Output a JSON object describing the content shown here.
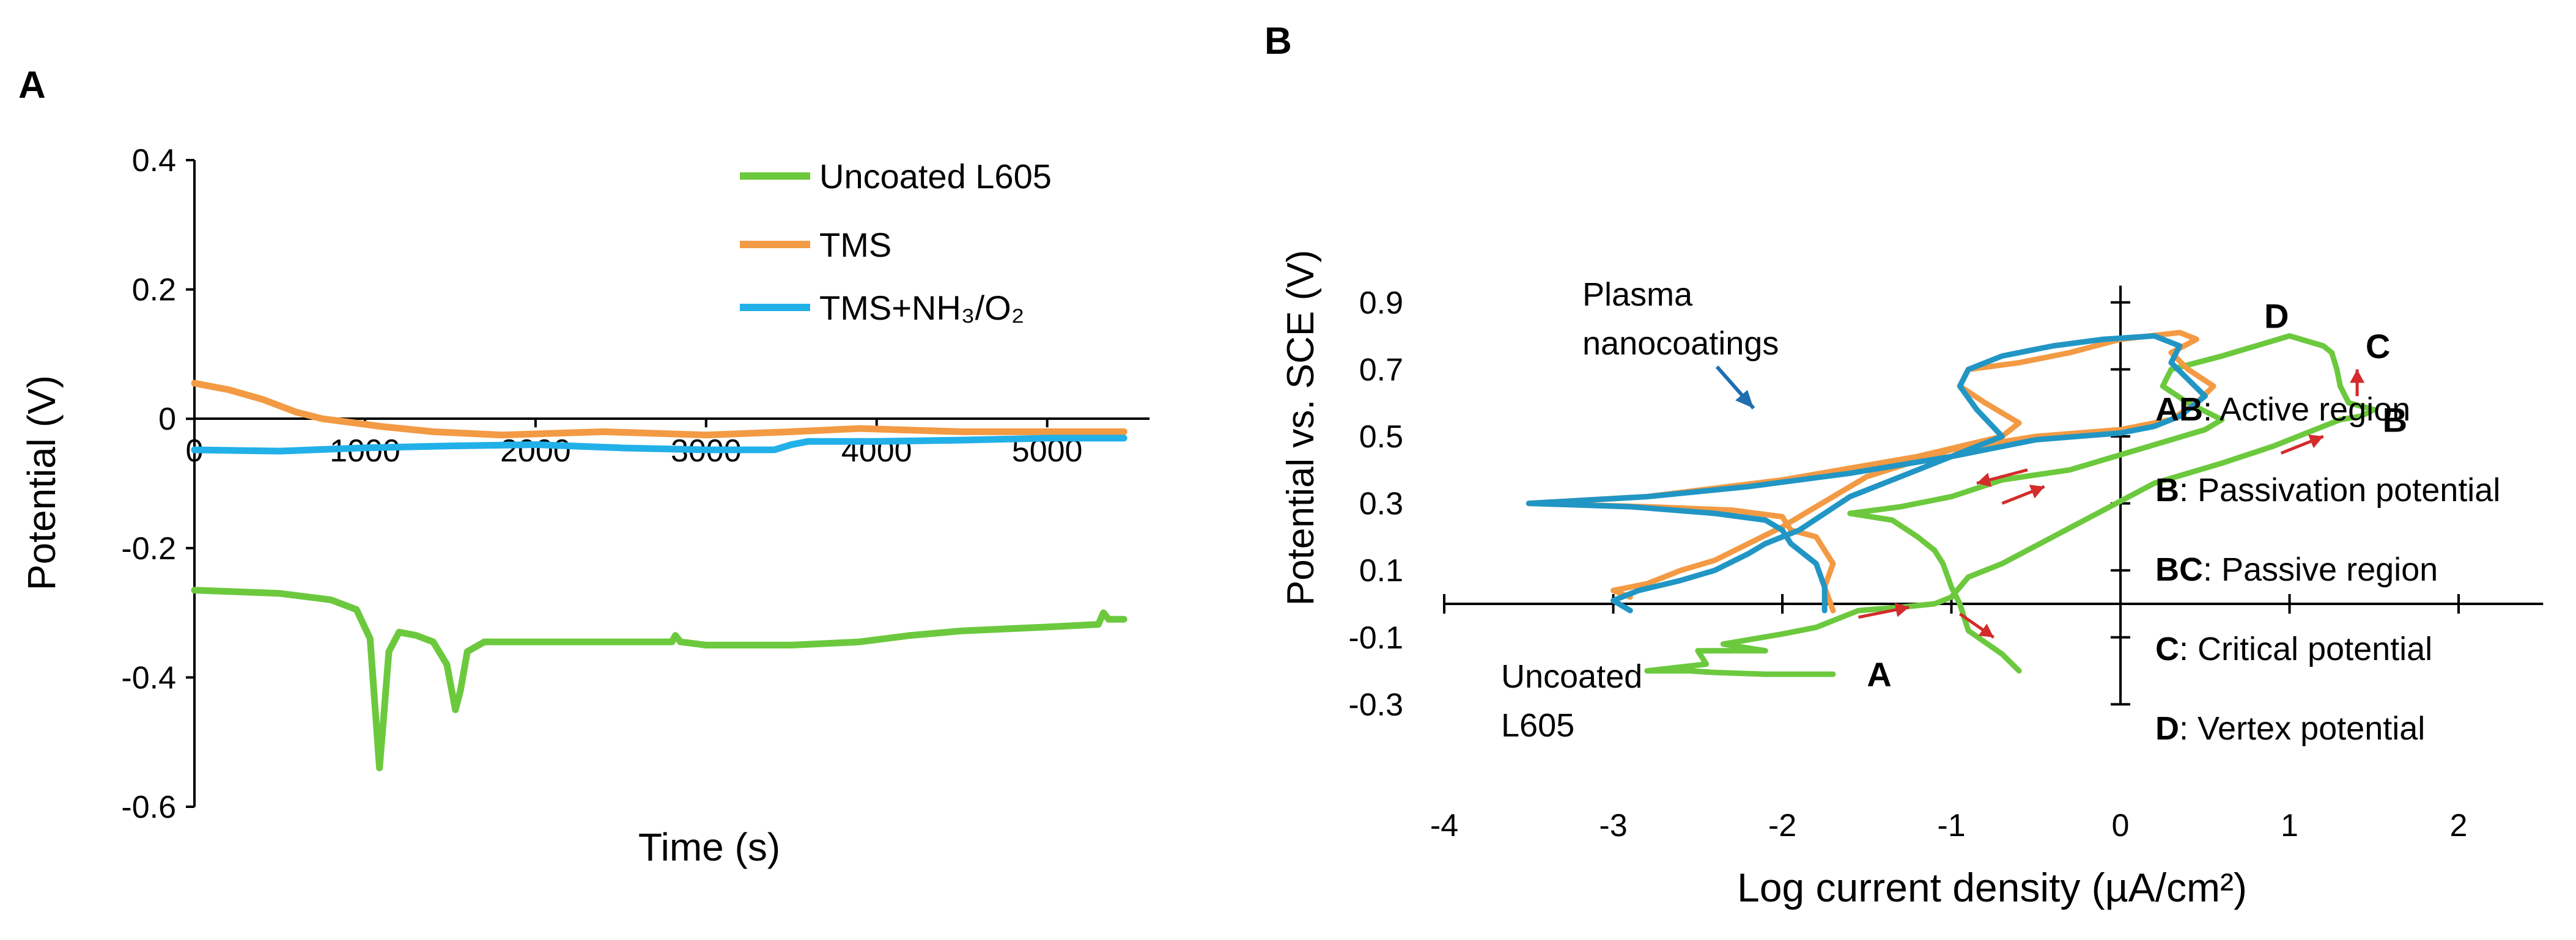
{
  "colors": {
    "uncoated": "#6cc93e",
    "tms": "#f39a44",
    "tms_nh3o2": "#22b0e8",
    "plasma": "#2196c4",
    "arrow": "#d42b2b",
    "pointer": "#1f6fb0",
    "axis": "#000000"
  },
  "chart_data": [
    {
      "panel_label": "A",
      "type": "line",
      "xlabel": "Time (s)",
      "ylabel": "Potential (V)",
      "xlim": [
        0,
        5600
      ],
      "ylim": [
        -0.6,
        0.4
      ],
      "x_ticks": [
        "0",
        "1000",
        "2000",
        "3000",
        "4000",
        "5000"
      ],
      "y_ticks": [
        "0.4",
        "0.2",
        "0",
        "-0.2",
        "-0.4",
        "-0.6"
      ],
      "x_tick_values": [
        0,
        1000,
        2000,
        3000,
        4000,
        5000
      ],
      "y_tick_values": [
        0.4,
        0.2,
        0,
        -0.2,
        -0.4,
        -0.6
      ],
      "legend_position": "top-right",
      "series": [
        {
          "name": "Uncoated L605",
          "color": "#6cc93e",
          "x": [
            0,
            500,
            800,
            950,
            1030,
            1060,
            1085,
            1110,
            1140,
            1200,
            1300,
            1400,
            1480,
            1530,
            1560,
            1600,
            1700,
            2000,
            2500,
            2800,
            2820,
            2850,
            3000,
            3500,
            3900,
            4200,
            4500,
            5000,
            5300,
            5330,
            5360,
            5450
          ],
          "y": [
            -0.265,
            -0.27,
            -0.28,
            -0.295,
            -0.34,
            -0.45,
            -0.54,
            -0.46,
            -0.36,
            -0.33,
            -0.335,
            -0.345,
            -0.38,
            -0.45,
            -0.42,
            -0.36,
            -0.345,
            -0.345,
            -0.345,
            -0.345,
            -0.335,
            -0.345,
            -0.35,
            -0.35,
            -0.345,
            -0.335,
            -0.328,
            -0.322,
            -0.318,
            -0.3,
            -0.31,
            -0.31
          ]
        },
        {
          "name": "TMS",
          "color": "#f39a44",
          "x": [
            0,
            200,
            400,
            600,
            750,
            900,
            1100,
            1400,
            1800,
            2400,
            3000,
            3500,
            3900,
            4500,
            5000,
            5450
          ],
          "y": [
            0.055,
            0.045,
            0.03,
            0.01,
            0.0,
            -0.005,
            -0.012,
            -0.02,
            -0.025,
            -0.02,
            -0.025,
            -0.02,
            -0.015,
            -0.02,
            -0.02,
            -0.02
          ]
        },
        {
          "name": "TMS+NH₃/O₂",
          "color": "#22b0e8",
          "x": [
            0,
            500,
            1000,
            1500,
            2000,
            2500,
            3000,
            3400,
            3500,
            3600,
            4000,
            4500,
            5000,
            5450
          ],
          "y": [
            -0.048,
            -0.05,
            -0.045,
            -0.042,
            -0.04,
            -0.045,
            -0.048,
            -0.048,
            -0.04,
            -0.035,
            -0.035,
            -0.033,
            -0.03,
            -0.03
          ]
        }
      ]
    },
    {
      "panel_label": "B",
      "type": "line",
      "xlabel": "Log current density (µA/cm²)",
      "ylabel": "Potential vs. SCE (V)",
      "xlim": [
        -4,
        2.5
      ],
      "ylim": [
        -0.3,
        0.95
      ],
      "x_ticks": [
        "-4",
        "-3",
        "-2",
        "-1",
        "0",
        "1",
        "2"
      ],
      "y_ticks": [
        "0.9",
        "0.7",
        "0.5",
        "0.3",
        "0.1",
        "-0.1",
        "-0.3"
      ],
      "x_tick_values": [
        -4,
        -3,
        -2,
        -1,
        0,
        1,
        2
      ],
      "y_tick_values": [
        0.9,
        0.7,
        0.5,
        0.3,
        0.1,
        -0.1,
        -0.3
      ],
      "series": [
        {
          "name": "Uncoated L605",
          "color": "#6cc93e",
          "x": [
            -1.7,
            -2.1,
            -2.4,
            -2.55,
            -2.8,
            -2.45,
            -2.5,
            -2.1,
            -2.35,
            -2.0,
            -1.8,
            -1.55,
            -1.3,
            -1.1,
            -1.0,
            -0.9,
            -0.7,
            -0.4,
            -0.1,
            0.2,
            0.6,
            0.9,
            1.15,
            1.3,
            1.42,
            1.5,
            1.35,
            1.3,
            1.28,
            1.25,
            1.2,
            1.0,
            0.6,
            0.3,
            0.25,
            0.4,
            0.6,
            0.5,
            0.1,
            -0.3,
            -0.7,
            -1.0,
            -1.3,
            -1.6,
            -1.35,
            -1.2,
            -1.1,
            -1.05,
            -1.0,
            -0.95,
            -0.9,
            -0.7,
            -0.6
          ],
          "y": [
            -0.21,
            -0.21,
            -0.205,
            -0.2,
            -0.2,
            -0.18,
            -0.14,
            -0.14,
            -0.12,
            -0.09,
            -0.07,
            -0.02,
            -0.01,
            0.0,
            0.02,
            0.08,
            0.12,
            0.2,
            0.28,
            0.36,
            0.42,
            0.47,
            0.52,
            0.55,
            0.56,
            0.58,
            0.6,
            0.65,
            0.7,
            0.75,
            0.77,
            0.8,
            0.74,
            0.7,
            0.65,
            0.6,
            0.55,
            0.52,
            0.46,
            0.4,
            0.37,
            0.32,
            0.29,
            0.27,
            0.25,
            0.2,
            0.16,
            0.12,
            0.05,
            0.0,
            -0.08,
            -0.15,
            -0.2
          ]
        },
        {
          "name": "TMS",
          "color": "#f39a44",
          "x": [
            -2.9,
            -3.0,
            -2.8,
            -2.6,
            -2.4,
            -2.2,
            -2.0,
            -1.7,
            -1.5,
            -1.0,
            -0.5,
            0.0,
            0.3,
            0.45,
            0.55,
            0.4,
            0.3,
            0.45,
            0.35,
            0.0,
            -0.3,
            -0.6,
            -0.9,
            -0.95,
            -0.8,
            -0.6,
            -0.7,
            -1.2,
            -2.0,
            -2.8,
            -3.5,
            -2.8,
            -2.3,
            -2.0,
            -1.95,
            -1.8,
            -1.7,
            -1.75,
            -1.7
          ],
          "y": [
            0.02,
            0.04,
            0.06,
            0.1,
            0.13,
            0.18,
            0.23,
            0.32,
            0.38,
            0.46,
            0.5,
            0.52,
            0.55,
            0.6,
            0.65,
            0.7,
            0.75,
            0.79,
            0.81,
            0.79,
            0.75,
            0.72,
            0.7,
            0.65,
            0.6,
            0.54,
            0.5,
            0.44,
            0.37,
            0.32,
            0.3,
            0.29,
            0.28,
            0.26,
            0.22,
            0.2,
            0.12,
            0.05,
            -0.02
          ]
        },
        {
          "name": "Plasma nanocoatings",
          "color": "#2196c4",
          "x": [
            -2.9,
            -3.0,
            -2.85,
            -2.6,
            -2.4,
            -2.2,
            -2.1,
            -1.9,
            -1.6,
            -1.3,
            -1.0,
            -0.5,
            0.0,
            0.2,
            0.35,
            0.5,
            0.4,
            0.3,
            0.35,
            0.2,
            -0.1,
            -0.4,
            -0.7,
            -0.9,
            -0.95,
            -0.85,
            -0.7,
            -1.0,
            -1.6,
            -2.2,
            -2.8,
            -3.5,
            -2.9,
            -2.4,
            -2.1,
            -2.0,
            -1.95,
            -1.8,
            -1.75,
            -1.75
          ],
          "y": [
            -0.02,
            0.01,
            0.04,
            0.07,
            0.1,
            0.15,
            0.18,
            0.22,
            0.32,
            0.38,
            0.44,
            0.49,
            0.51,
            0.53,
            0.56,
            0.62,
            0.67,
            0.72,
            0.77,
            0.8,
            0.79,
            0.77,
            0.74,
            0.7,
            0.65,
            0.58,
            0.5,
            0.44,
            0.39,
            0.35,
            0.32,
            0.3,
            0.29,
            0.27,
            0.25,
            0.22,
            0.18,
            0.12,
            0.05,
            -0.02
          ]
        }
      ],
      "point_labels": [
        {
          "text": "A",
          "x": -1.5,
          "y": -0.21
        },
        {
          "text": "B",
          "x": 1.55,
          "y": 0.55
        },
        {
          "text": "C",
          "x": 1.45,
          "y": 0.77
        },
        {
          "text": "D",
          "x": 0.85,
          "y": 0.86
        }
      ],
      "annotations": {
        "plasma_label_line1": "Plasma",
        "plasma_label_line2": "nanocoatings",
        "uncoated_label_line1": "Uncoated",
        "uncoated_label_line2": "L605"
      },
      "region_legend": [
        {
          "bold": "AB",
          "rest": ": Active region"
        },
        {
          "bold": "B",
          "rest": ": Passivation potential"
        },
        {
          "bold": "BC",
          "rest": ": Passive region"
        },
        {
          "bold": "C",
          "rest": ": Critical potential"
        },
        {
          "bold": "D",
          "rest": ": Vertex potential"
        }
      ]
    }
  ]
}
